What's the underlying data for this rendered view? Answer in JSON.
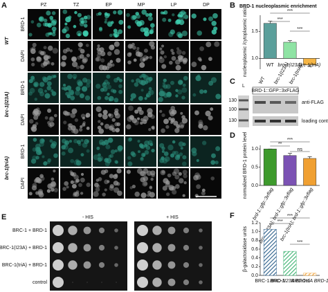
{
  "panel_a": {
    "letter": "A",
    "columns": [
      "PZ",
      "TZ",
      "EP",
      "MP",
      "LP",
      "DP"
    ],
    "rows": [
      {
        "genotype": "WT",
        "channels": [
          "BRD-1",
          "DAPI"
        ]
      },
      {
        "genotype": "brc-1(I23A)",
        "channels": [
          "BRD-1",
          "DAPI"
        ]
      },
      {
        "genotype": "brc-1(triA)",
        "channels": [
          "BRD-1",
          "DAPI"
        ]
      }
    ]
  },
  "panel_c": {
    "letter": "C",
    "ladder_label": "L",
    "lanes": [
      "WT",
      "brc-1(I23A)",
      "brc-1(triA)"
    ],
    "construct": "BRD-1::GFP::3xFLAG",
    "markers": [
      "130",
      "100",
      "130"
    ],
    "blot_labels": [
      "anti-FLAG",
      "loading control"
    ]
  },
  "panel_e": {
    "letter": "E",
    "conditions": [
      "- HIS",
      "+ HIS"
    ],
    "rows": [
      "BRC-1 + BRD-1",
      "BRC-1(I23A) + BRD-1",
      "BRC-1(triA) + BRD-1",
      "control"
    ]
  },
  "chart_data": [
    {
      "type": "bar",
      "panel_label": "B",
      "title": "BRD-1 nucleoplasmic enrichment",
      "y_label": "nucleoplasmic /cytoplasmic ratio",
      "categories": [
        "WT",
        "brc-1(I23A)",
        "brc-1(triA)"
      ],
      "values": [
        1.65,
        1.3,
        0.88
      ],
      "errors": [
        0.04,
        0.03,
        0.03
      ],
      "colors": [
        "#5b9f9b",
        "#8fe3a4",
        "#f5b545"
      ],
      "ylim": [
        0.8,
        1.8
      ],
      "baseline": 1,
      "yticks": [
        {
          "value": 1,
          "label": "1.0"
        },
        1.5
      ],
      "annotations": [
        "***",
        "***",
        "***"
      ]
    },
    {
      "type": "bar",
      "panel_label": "D",
      "y_label": "normalized BRD-1 protein level",
      "categories": [
        "brd-1::gfp::3xflag",
        "brc-1(I23A); brd-1::gfp::3xflag",
        "brc-1(triA); brd-1::gfp::3xflag"
      ],
      "values": [
        1.0,
        0.82,
        0.74
      ],
      "errors": [
        0.0,
        0.06,
        0.05
      ],
      "colors": [
        "#3d9a2c",
        "#7b52b3",
        "#f0a032"
      ],
      "ylim": [
        0,
        1.1
      ],
      "baseline": 0,
      "yticks": [
        {
          "value": 0,
          "label": "0.0"
        },
        0.5,
        {
          "value": 1,
          "label": "1.0"
        }
      ],
      "annotations": [
        "***",
        "**",
        "ns"
      ]
    },
    {
      "type": "bar",
      "panel_label": "F",
      "y_label": "β-galactosidase units",
      "categories": [
        "BRC-1 BRD-1",
        "BRC-1I23A BRD-1",
        "BRC-1triA BRD-1"
      ],
      "values": [
        1.05,
        0.55,
        0.05
      ],
      "colors": [
        "#2c5f8a",
        "#3cb371",
        "#f0a032"
      ],
      "hatched": true,
      "ylim": [
        0,
        1.2
      ],
      "baseline": 0,
      "yticks": [
        {
          "value": 0,
          "label": "0.0"
        },
        0.2,
        0.4,
        0.6,
        0.8,
        {
          "value": 1,
          "label": "1.0"
        },
        1.2
      ],
      "annotations": [
        "***",
        "***",
        "***"
      ]
    }
  ]
}
